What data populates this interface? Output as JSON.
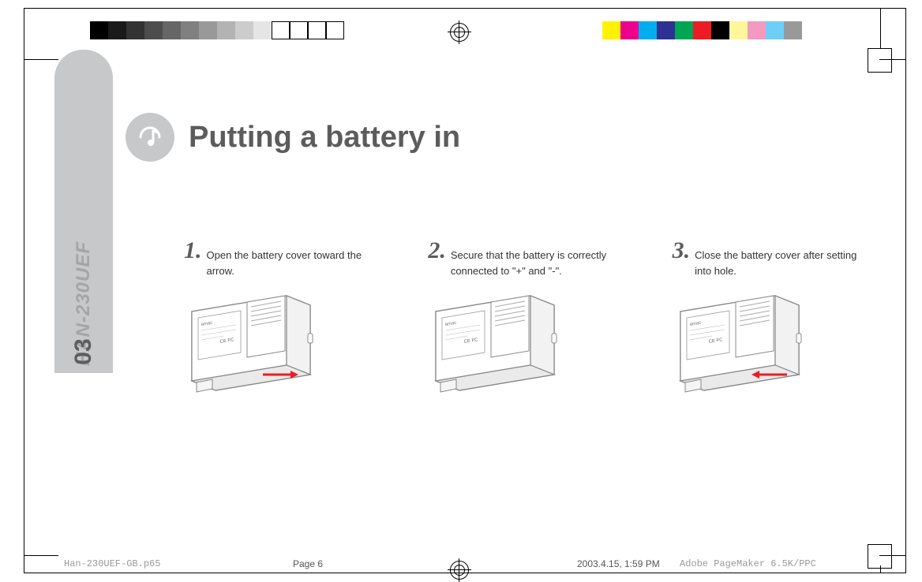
{
  "side": {
    "model": "HAN-230UEF",
    "num": "03"
  },
  "title": "Putting a battery in",
  "steps": [
    {
      "num": "1.",
      "text": "Open the battery cover toward the arrow.",
      "arrow": true
    },
    {
      "num": "2.",
      "text": "Secure that the battery is correctly connected to \"+\" and \"-\".",
      "arrow": false
    },
    {
      "num": "3.",
      "text": "Close the battery cover after setting into hole.",
      "arrow": true
    }
  ],
  "footer": {
    "file": "Han-230UEF-GB.p65",
    "page": "Page 6",
    "date": "2003.4.15, 1:59 PM",
    "app": "Adobe PageMaker 6.5K/PPC"
  },
  "grayBar": [
    "#000000",
    "#1a1a1a",
    "#333333",
    "#4d4d4d",
    "#666666",
    "#808080",
    "#999999",
    "#b3b3b3",
    "#cccccc",
    "#e5e5e5",
    "#ffffff",
    "#ffffff",
    "#ffffff",
    "#ffffff"
  ],
  "grayBarBorders": [
    false,
    false,
    false,
    false,
    false,
    false,
    false,
    false,
    false,
    false,
    true,
    true,
    true,
    true
  ],
  "colorBar": [
    "#fff200",
    "#ec008c",
    "#00aeef",
    "#2e3192",
    "#00a651",
    "#ed1c24",
    "#000000",
    "#fff799",
    "#f49ac1",
    "#6dcff6",
    "#999999"
  ]
}
